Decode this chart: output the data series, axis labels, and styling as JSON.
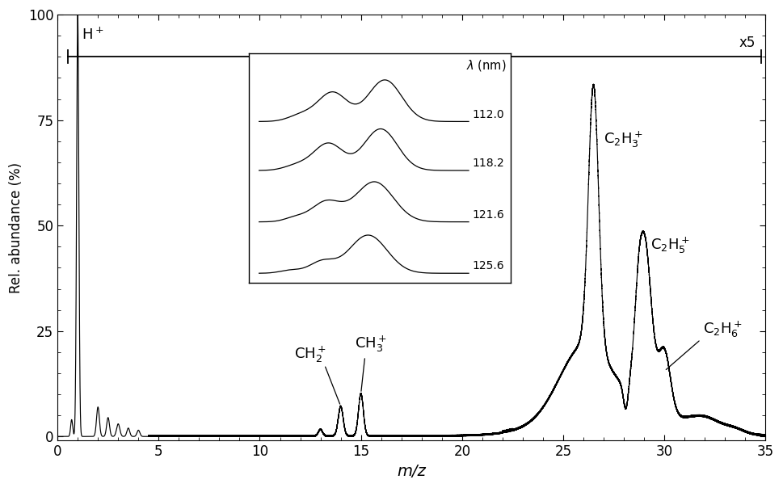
{
  "xlabel": "m/z",
  "ylabel": "Rel. abundance (%)",
  "xlim": [
    0,
    35
  ],
  "ylim": [
    -1,
    100
  ],
  "xticks": [
    0,
    5,
    10,
    15,
    20,
    25,
    30,
    35
  ],
  "yticks": [
    0,
    25,
    50,
    75,
    100
  ],
  "line_color": "#000000",
  "background_color": "#ffffff",
  "inset_wavelengths": [
    "112.0",
    "118.2",
    "121.6",
    "125.6"
  ],
  "inset_label": "λ (nm)",
  "x5_annotation": "x5"
}
